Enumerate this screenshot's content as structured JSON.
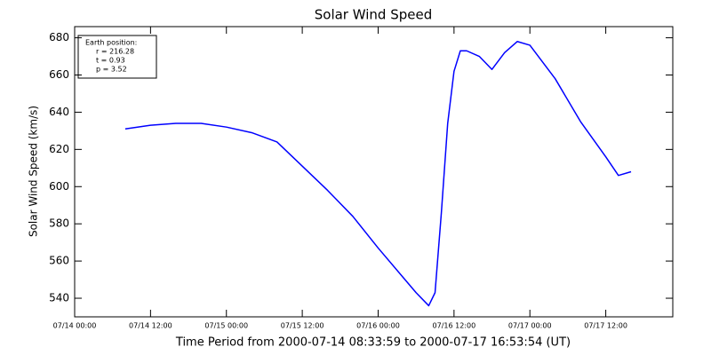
{
  "chart_data": {
    "type": "line",
    "title": "Solar Wind Speed",
    "x_label": "Time Period from 2000-07-14 08:33:59 to 2000-07-17 16:53:54 (UT)",
    "y_label": "Solar Wind Speed (km/s)",
    "annotation": [
      "Earth position:",
      "r = 216.28",
      "t = 0.93",
      "p = 3.52"
    ],
    "x": [
      "07/14 08:00",
      "07/14 12:00",
      "07/14 16:00",
      "07/14 20:00",
      "07/15 00:00",
      "07/15 04:00",
      "07/15 08:00",
      "07/15 12:00",
      "07/15 16:00",
      "07/15 20:00",
      "07/16 00:00",
      "07/16 04:00",
      "07/16 06:00",
      "07/16 08:00",
      "07/16 09:00",
      "07/16 10:00",
      "07/16 11:00",
      "07/16 12:00",
      "07/16 13:00",
      "07/16 14:00",
      "07/16 16:00",
      "07/16 18:00",
      "07/16 20:00",
      "07/16 22:00",
      "07/17 00:00",
      "07/17 04:00",
      "07/17 08:00",
      "07/17 12:00",
      "07/17 14:00",
      "07/17 16:00"
    ],
    "series": [
      {
        "name": "Solar Wind Speed",
        "color": "#0000ff",
        "values": [
          631,
          633,
          634,
          634,
          632,
          629,
          624,
          611,
          598,
          584,
          567,
          551,
          543,
          536,
          543,
          586,
          634,
          662,
          673,
          673,
          670,
          663,
          672,
          678,
          676,
          658,
          635,
          616,
          606,
          608
        ]
      }
    ],
    "xlim": [
      "07/14 00:00",
      "07/17 22:36"
    ],
    "xticks": [
      "07/14 00:00",
      "07/14 12:00",
      "07/15 00:00",
      "07/15 12:00",
      "07/16 00:00",
      "07/16 12:00",
      "07/17 00:00",
      "07/17 12:00"
    ],
    "ylim": [
      530,
      686
    ],
    "yticks": [
      540,
      560,
      580,
      600,
      620,
      640,
      660,
      680
    ]
  }
}
